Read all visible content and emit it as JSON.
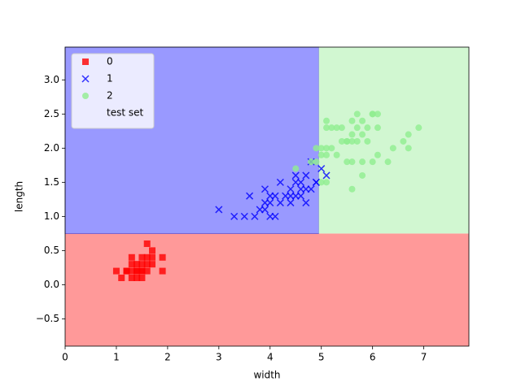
{
  "chart_data": {
    "type": "scatter",
    "x_label": "width",
    "y_label": "length",
    "xlim": [
      0,
      7.88
    ],
    "ylim": [
      -0.9,
      3.48
    ],
    "xticks": [
      0,
      1,
      2,
      3,
      4,
      5,
      6,
      7
    ],
    "yticks": [
      {
        "value": -0.5,
        "label": "−0.5"
      },
      {
        "value": 0,
        "label": "0.0"
      },
      {
        "value": 0.5,
        "label": "0.5"
      },
      {
        "value": 1,
        "label": "1.0"
      },
      {
        "value": 1.5,
        "label": "1.5"
      },
      {
        "value": 2,
        "label": "2.0"
      },
      {
        "value": 2.5,
        "label": "2.5"
      },
      {
        "value": 3,
        "label": "3.0"
      }
    ],
    "decision_boundary": {
      "x": 4.95,
      "y": 0.75
    },
    "region_colors": [
      "#ff9999",
      "#9999ff",
      "#d1f7d1"
    ],
    "legend": "upper left",
    "series": [
      {
        "name": "0",
        "color": "#ff0000",
        "marker": "square",
        "x": [
          1.4,
          1.3,
          1.5,
          1.7,
          1.4,
          1.5,
          1.6,
          1.1,
          1.2,
          1.5,
          1.3,
          1.7,
          1.0,
          1.9,
          1.6,
          1.5,
          1.6,
          1.4,
          1.9,
          1.3,
          1.6,
          1.3,
          1.7,
          1.5,
          1.2,
          1.4
        ],
        "values": [
          0.2,
          0.2,
          0.2,
          0.4,
          0.3,
          0.1,
          0.2,
          0.1,
          0.2,
          0.4,
          0.4,
          0.3,
          0.2,
          0.2,
          0.4,
          0.3,
          0.6,
          0.1,
          0.4,
          0.3,
          0.3,
          0.1,
          0.5,
          0.2,
          0.2,
          0.2
        ]
      },
      {
        "name": "1",
        "color": "#0000ff",
        "marker": "x",
        "x": [
          4.7,
          4.5,
          4.9,
          4.0,
          4.6,
          4.5,
          4.7,
          3.3,
          4.6,
          3.9,
          3.5,
          4.2,
          4.0,
          3.6,
          4.4,
          4.1,
          3.9,
          4.8,
          4.7,
          4.3,
          4.8,
          5.0,
          3.8,
          3.7,
          3.9,
          5.1,
          4.5,
          4.4,
          4.1,
          4.6,
          4.0,
          4.2,
          3.0,
          4.9,
          4.4
        ],
        "values": [
          1.4,
          1.5,
          1.5,
          1.3,
          1.5,
          1.3,
          1.6,
          1.0,
          1.3,
          1.4,
          1.0,
          1.5,
          1.0,
          1.3,
          1.4,
          1.0,
          1.1,
          1.8,
          1.2,
          1.3,
          1.4,
          1.7,
          1.1,
          1.0,
          1.2,
          1.6,
          1.6,
          1.3,
          1.3,
          1.4,
          1.2,
          1.2,
          1.1,
          1.5,
          1.2
        ]
      },
      {
        "name": "2",
        "color": "#90ee90",
        "marker": "circle",
        "x": [
          6.0,
          5.1,
          5.9,
          5.6,
          5.8,
          6.6,
          4.5,
          6.3,
          5.8,
          6.1,
          5.1,
          5.3,
          5.5,
          5.0,
          5.1,
          5.3,
          5.5,
          6.7,
          6.9,
          5.0,
          5.7,
          4.9,
          6.7,
          4.9,
          5.7,
          6.0,
          4.8,
          5.8,
          6.1,
          6.4,
          5.6,
          5.1,
          5.6,
          6.1,
          5.6,
          5.4,
          5.2,
          5.9,
          5.7,
          5.2,
          5.4,
          5.0,
          5.6,
          5.8,
          6.0,
          5.1,
          5.5
        ],
        "values": [
          2.5,
          1.9,
          2.1,
          1.8,
          2.2,
          2.1,
          1.7,
          1.8,
          1.8,
          2.5,
          2.0,
          1.9,
          2.1,
          2.0,
          2.4,
          2.3,
          1.8,
          2.2,
          2.3,
          1.5,
          2.3,
          2.0,
          2.0,
          1.8,
          2.1,
          1.8,
          1.8,
          1.6,
          1.9,
          2.0,
          2.2,
          1.5,
          1.4,
          2.3,
          2.4,
          2.1,
          2.3,
          2.3,
          2.5,
          2.0,
          2.3,
          1.9,
          2.1,
          2.4,
          2.5,
          2.3,
          2.1
        ]
      },
      {
        "name": "test set",
        "color": "none",
        "marker": "circle",
        "x": [],
        "values": []
      }
    ]
  }
}
